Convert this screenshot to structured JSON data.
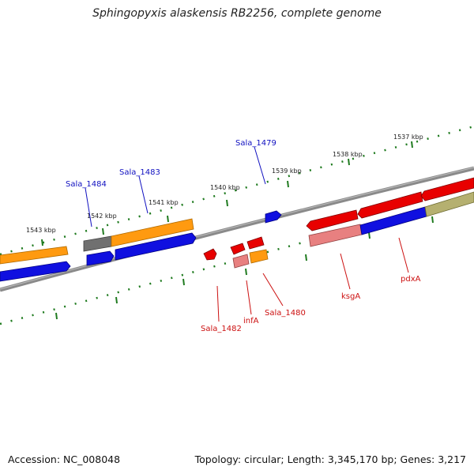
{
  "title": "Sphingopyxis alaskensis RB2256, complete genome",
  "footer": {
    "accession": "Accession: NC_008048",
    "info": "Topology: circular; Length: 3,345,170 bp; Genes: 3,217"
  },
  "ticks": [
    "1537 kbp",
    "1538 kbp",
    "1539 kbp",
    "1540 kbp",
    "1541 kbp",
    "1542 kbp",
    "1543 kbp"
  ],
  "genes_top": [
    "Sala_1479",
    "Sala_1483",
    "Sala_1484"
  ],
  "genes_bottom": [
    "Sala_1482",
    "infA",
    "Sala_1480",
    "ksgA",
    "pdxA"
  ],
  "colors": {
    "backbone": "#8a8a8a",
    "scale_tick": "#1e7a1e",
    "cds_blue": "#1010e0",
    "gene_orange": "#ff9a10",
    "gene_red": "#e80000",
    "gene_pink": "#e88080",
    "gene_gray": "#707070",
    "gene_olive": "#b5b070",
    "label_top": "#1010c0",
    "label_bottom": "#cc1010"
  }
}
